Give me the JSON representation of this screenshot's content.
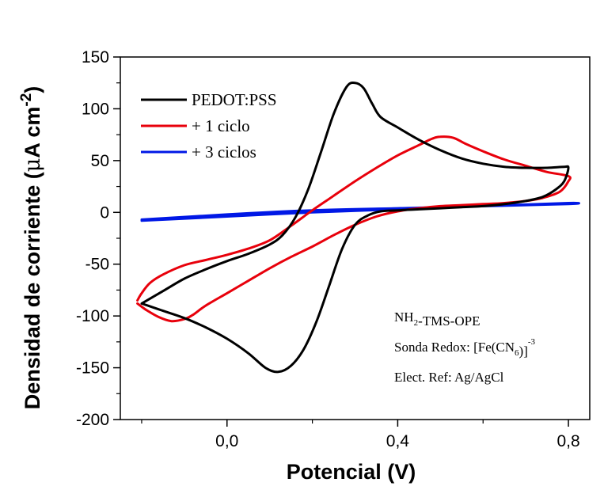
{
  "chart_data": {
    "type": "line",
    "xlabel": "Potencial (V)",
    "ylabel": {
      "main": "Densidad de corriente (",
      "unit_mu": "μ",
      "unit_rest": "A cm",
      "exponent": "-2",
      "close": ")"
    },
    "xlim": [
      -0.25,
      0.85
    ],
    "ylim": [
      -200,
      150
    ],
    "x_ticks": [
      {
        "value": 0.0,
        "label": "0,0"
      },
      {
        "value": 0.4,
        "label": "0,4"
      },
      {
        "value": 0.8,
        "label": "0,8"
      }
    ],
    "x_minor_ticks": [
      -0.2,
      0.2,
      0.6
    ],
    "y_ticks": [
      {
        "value": 150,
        "label": "150"
      },
      {
        "value": 100,
        "label": "100"
      },
      {
        "value": 50,
        "label": "50"
      },
      {
        "value": 0,
        "label": "0"
      },
      {
        "value": -50,
        "label": "-50"
      },
      {
        "value": -100,
        "label": "-100"
      },
      {
        "value": -150,
        "label": "-150"
      },
      {
        "value": -200,
        "label": "-200"
      }
    ],
    "y_minor_step": 25,
    "grid": false,
    "legend_position": "top-left",
    "series": [
      {
        "name": "PEDOT:PSS",
        "color": "#000000",
        "points": [
          [
            -0.2,
            -88
          ],
          [
            -0.15,
            -76
          ],
          [
            -0.1,
            -64
          ],
          [
            -0.05,
            -55
          ],
          [
            0.0,
            -47
          ],
          [
            0.05,
            -40
          ],
          [
            0.1,
            -31
          ],
          [
            0.13,
            -22
          ],
          [
            0.16,
            -5
          ],
          [
            0.19,
            22
          ],
          [
            0.22,
            58
          ],
          [
            0.25,
            95
          ],
          [
            0.28,
            121
          ],
          [
            0.3,
            125
          ],
          [
            0.32,
            120
          ],
          [
            0.34,
            105
          ],
          [
            0.36,
            92
          ],
          [
            0.4,
            82
          ],
          [
            0.45,
            70
          ],
          [
            0.5,
            60
          ],
          [
            0.55,
            52
          ],
          [
            0.6,
            47
          ],
          [
            0.65,
            44
          ],
          [
            0.7,
            43
          ],
          [
            0.75,
            43
          ],
          [
            0.79,
            44
          ],
          [
            0.8,
            43
          ],
          [
            0.79,
            30
          ],
          [
            0.77,
            22
          ],
          [
            0.74,
            15
          ],
          [
            0.7,
            11
          ],
          [
            0.65,
            8
          ],
          [
            0.6,
            6
          ],
          [
            0.55,
            5
          ],
          [
            0.5,
            4
          ],
          [
            0.45,
            3
          ],
          [
            0.4,
            2
          ],
          [
            0.36,
            1
          ],
          [
            0.33,
            -3
          ],
          [
            0.3,
            -12
          ],
          [
            0.27,
            -35
          ],
          [
            0.24,
            -70
          ],
          [
            0.21,
            -105
          ],
          [
            0.18,
            -132
          ],
          [
            0.15,
            -148
          ],
          [
            0.12,
            -154
          ],
          [
            0.09,
            -150
          ],
          [
            0.05,
            -136
          ],
          [
            0.0,
            -122
          ],
          [
            -0.05,
            -111
          ],
          [
            -0.1,
            -102
          ],
          [
            -0.15,
            -95
          ],
          [
            -0.2,
            -88
          ]
        ]
      },
      {
        "name": "+ 1 ciclo",
        "color": "#e8000b",
        "points": [
          [
            -0.21,
            -85
          ],
          [
            -0.2,
            -78
          ],
          [
            -0.18,
            -68
          ],
          [
            -0.15,
            -60
          ],
          [
            -0.1,
            -51
          ],
          [
            -0.05,
            -46
          ],
          [
            0.0,
            -41
          ],
          [
            0.05,
            -35
          ],
          [
            0.1,
            -27
          ],
          [
            0.15,
            -13
          ],
          [
            0.2,
            2
          ],
          [
            0.25,
            16
          ],
          [
            0.3,
            30
          ],
          [
            0.35,
            43
          ],
          [
            0.4,
            55
          ],
          [
            0.45,
            65
          ],
          [
            0.48,
            71
          ],
          [
            0.5,
            73
          ],
          [
            0.53,
            72
          ],
          [
            0.56,
            66
          ],
          [
            0.6,
            59
          ],
          [
            0.65,
            51
          ],
          [
            0.7,
            45
          ],
          [
            0.75,
            39
          ],
          [
            0.8,
            35
          ],
          [
            0.8,
            30
          ],
          [
            0.78,
            20
          ],
          [
            0.74,
            14
          ],
          [
            0.7,
            11
          ],
          [
            0.65,
            9
          ],
          [
            0.6,
            8
          ],
          [
            0.55,
            7
          ],
          [
            0.5,
            6
          ],
          [
            0.45,
            4
          ],
          [
            0.4,
            1
          ],
          [
            0.35,
            -4
          ],
          [
            0.3,
            -12
          ],
          [
            0.25,
            -22
          ],
          [
            0.2,
            -33
          ],
          [
            0.15,
            -43
          ],
          [
            0.1,
            -54
          ],
          [
            0.05,
            -66
          ],
          [
            0.0,
            -78
          ],
          [
            -0.05,
            -90
          ],
          [
            -0.08,
            -99
          ],
          [
            -0.1,
            -103
          ],
          [
            -0.13,
            -105
          ],
          [
            -0.16,
            -101
          ],
          [
            -0.19,
            -94
          ],
          [
            -0.21,
            -88
          ]
        ]
      },
      {
        "name": "+ 3 ciclos",
        "color": "#0018e6",
        "points": [
          [
            -0.2,
            -8
          ],
          [
            0.0,
            -4
          ],
          [
            0.2,
            0
          ],
          [
            0.4,
            3
          ],
          [
            0.6,
            6
          ],
          [
            0.8,
            9
          ],
          [
            0.8,
            8
          ],
          [
            0.6,
            6
          ],
          [
            0.4,
            4
          ],
          [
            0.2,
            2
          ],
          [
            0.0,
            -2
          ],
          [
            -0.2,
            -7
          ]
        ]
      }
    ],
    "annotations": [
      {
        "parts": [
          {
            "text": "NH"
          },
          {
            "text": "2",
            "sub": true
          },
          {
            "text": "-TMS-OPE"
          }
        ]
      },
      {
        "parts": [
          {
            "text": "Sonda Redox: [Fe(CN"
          },
          {
            "text": "6",
            "sub": true
          },
          {
            "text": ")]"
          },
          {
            "text": "-3",
            "sup": true
          }
        ]
      },
      {
        "parts": [
          {
            "text": "Elect. Ref: Ag/AgCl"
          }
        ]
      }
    ]
  }
}
